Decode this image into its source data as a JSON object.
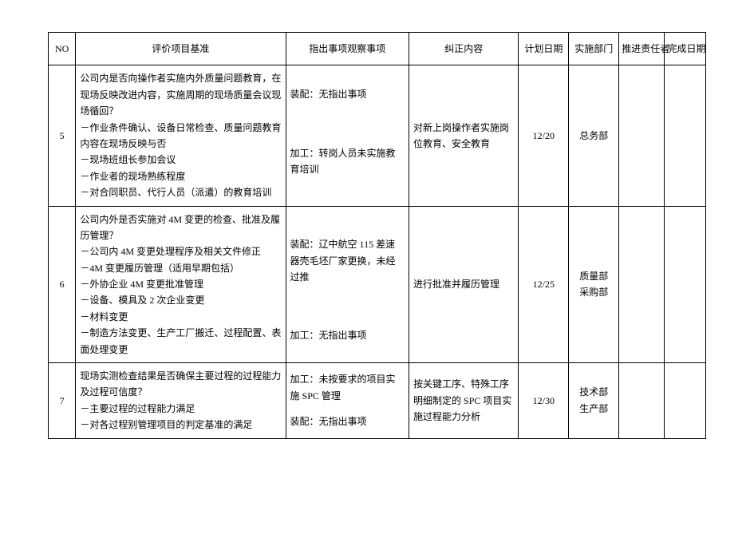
{
  "columns": {
    "no": "NO",
    "criteria": "评价项目基准",
    "observation": "指出事项观察事项",
    "correction": "纠正内容",
    "plandate": "计划日期",
    "dept": "实施部门",
    "responsible": "推进责任者",
    "donedate": "完成日期"
  },
  "rows": [
    {
      "no": "5",
      "criteria": "公司内是否向操作者实施内外质量问题教育，在现场反映改进内容，实施周期的现场质量会议现场循回？\n－作业条件确认、设备日常检查、质量问题教育内容在现场反映与否\n－现场班组长参加会议\n－作业者的现场熟练程度\n－对合同职员、代行人员（派遣）的教育培训",
      "obs_top": "装配：无指出事项",
      "obs_bottom": "加工：转岗人员未实施教育培训",
      "correction": "对新上岗操作者实施岗位教育、安全教育",
      "plandate": "12/20",
      "dept": "总务部",
      "responsible": "",
      "donedate": ""
    },
    {
      "no": "6",
      "criteria": "公司内外是否实施对 4M 变更的检查、批准及履历管理？\n－公司内 4M 变更处理程序及相关文件修正\n－4M 变更履历管理（适用早期包括）\n－外协企业 4M 变更批准管理\n－设备、模具及 2 次企业变更\n－材料变更\n－制造方法变更、生产工厂搬迁、过程配置、表面处理变更",
      "obs_top": "装配：辽中航空 115 差速器壳毛坯厂家更换，未经过推",
      "obs_bottom": "加工：无指出事项",
      "correction": "进行批准并履历管理",
      "plandate": "12/25",
      "dept": "质量部\n采购部",
      "responsible": "",
      "donedate": ""
    },
    {
      "no": "7",
      "criteria": "现场实测检查结果是否确保主要过程的过程能力及过程可信度？\n－主要过程的过程能力满足\n－对各过程别管理项目的判定基准的满足",
      "obs_top": "加工：未按要求的项目实施 SPC 管理",
      "obs_bottom": "装配：无指出事项",
      "correction": "按关键工序、特殊工序明细制定的 SPC 项目实施过程能力分析",
      "plandate": "12/30",
      "dept": "技术部\n生产部",
      "responsible": "",
      "donedate": ""
    }
  ]
}
